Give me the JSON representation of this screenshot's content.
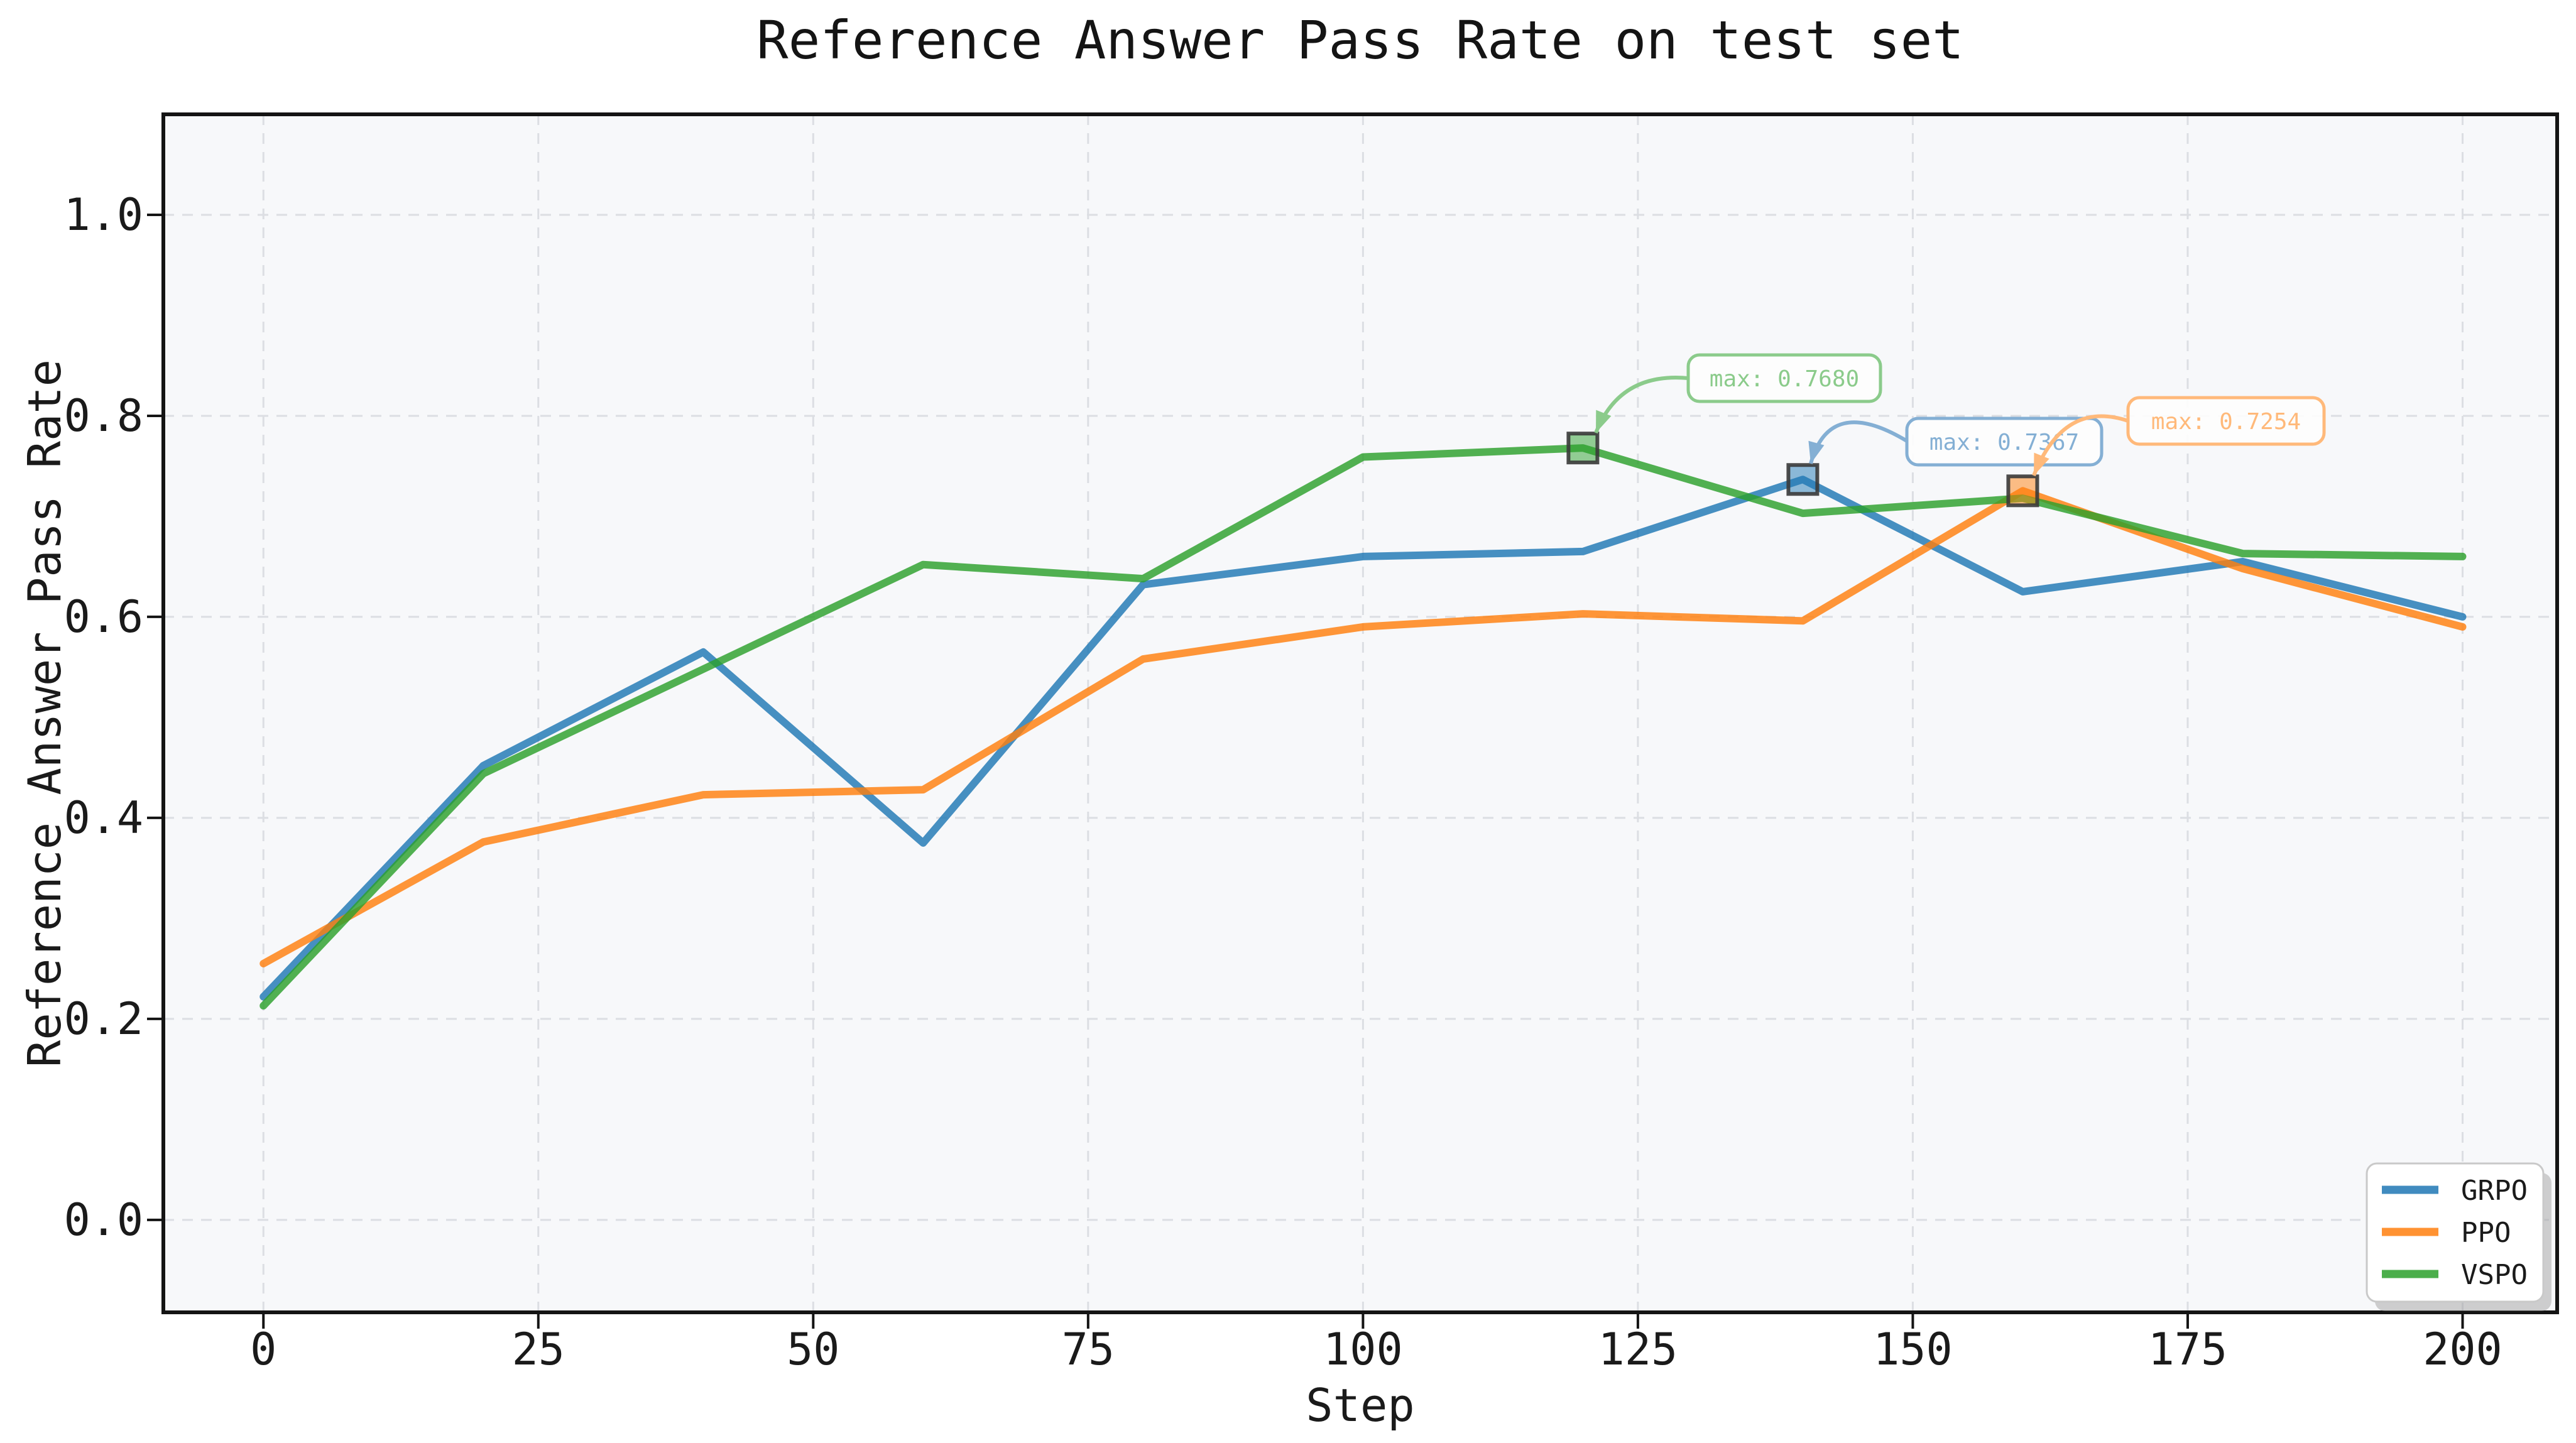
{
  "chart_data": {
    "type": "line",
    "title": "Reference Answer Pass Rate on test set",
    "xlabel": "Step",
    "ylabel": "Reference Answer Pass Rate",
    "x": [
      0,
      20,
      40,
      60,
      80,
      100,
      120,
      140,
      160,
      180,
      200
    ],
    "series": [
      {
        "name": "GRPO",
        "color": "#1f77b4",
        "light_color": "#84afd4",
        "values": [
          0.222,
          0.452,
          0.565,
          0.375,
          0.632,
          0.66,
          0.665,
          0.7367,
          0.625,
          0.655,
          0.6
        ]
      },
      {
        "name": "PPO",
        "color": "#ff7f0e",
        "light_color": "#ffb97a",
        "values": [
          0.255,
          0.376,
          0.423,
          0.428,
          0.558,
          0.59,
          0.603,
          0.596,
          0.7254,
          0.648,
          0.59
        ]
      },
      {
        "name": "VSPO",
        "color": "#2ca02c",
        "light_color": "#8bcb8b",
        "values": [
          0.213,
          0.444,
          0.548,
          0.652,
          0.638,
          0.759,
          0.768,
          0.703,
          0.718,
          0.663,
          0.66
        ]
      }
    ],
    "annotations": [
      {
        "series": "VSPO",
        "text": "max: 0.7680",
        "step": 120,
        "value": 0.768
      },
      {
        "series": "GRPO",
        "text": "max: 0.7367",
        "step": 140,
        "value": 0.7367
      },
      {
        "series": "PPO",
        "text": "max: 0.7254",
        "step": 160,
        "value": 0.7254
      }
    ],
    "xtick_values": [
      0,
      25,
      50,
      75,
      100,
      125,
      150,
      175,
      200
    ],
    "xtick_labels": [
      "0",
      "25",
      "50",
      "75",
      "100",
      "125",
      "150",
      "175",
      "200"
    ],
    "ytick_values": [
      0.0,
      0.2,
      0.4,
      0.6,
      0.8,
      1.0
    ],
    "ytick_labels": [
      "0.0",
      "0.2",
      "0.4",
      "0.6",
      "0.8",
      "1.0"
    ],
    "xlim": [
      -9.1,
      208.6
    ],
    "ylim": [
      -0.092,
      1.1
    ],
    "grid": true,
    "legend": {
      "location": "lower right",
      "entries": [
        "GRPO",
        "PPO",
        "VSPO"
      ]
    },
    "colors": {
      "figure_bg": "#ffffff",
      "plot_bg": "#f7f8fa",
      "grid": "#dcdee3",
      "spine": "#141414",
      "text": "#1a1a1a",
      "marker_edge": "#3a3a3a",
      "legend_border": "#c9c9c9",
      "legend_shadow": "#9a9a9a"
    }
  }
}
